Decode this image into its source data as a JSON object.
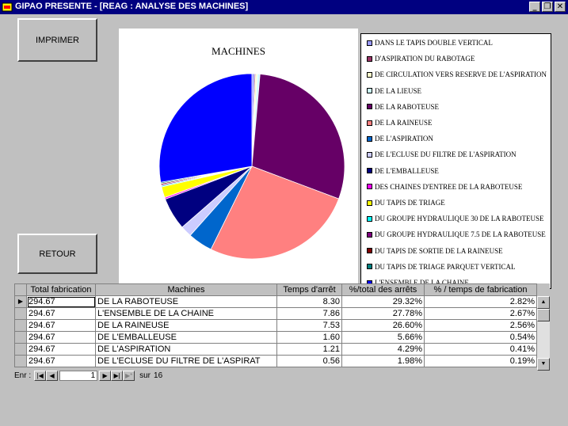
{
  "window": {
    "title": "GIPAO PRESENTE - [REAG : ANALYSE DES MACHINES]",
    "minimize_glyph": "_",
    "restore_glyph": "❐",
    "close_glyph": "✕"
  },
  "buttons": {
    "print_label": "IMPRIMER",
    "back_label": "RETOUR"
  },
  "chart_data": {
    "type": "pie",
    "title": "MACHINES",
    "legend_position": "right",
    "series": [
      {
        "name": "DANS LE TAPIS DOUBLE VERTICAL",
        "value": 0.45,
        "color": "#9999ff"
      },
      {
        "name": "D'ASPIRATION DU RABOTAGE",
        "value": 0.2,
        "color": "#993366"
      },
      {
        "name": "DE CIRCULATION VERS RESERVE DE L'ASPIRATION",
        "value": 0.3,
        "color": "#ffffcc"
      },
      {
        "name": "DE LA LIEUSE",
        "value": 0.45,
        "color": "#ccffff"
      },
      {
        "name": "DE LA RABOTEUSE",
        "value": 29.32,
        "color": "#660066"
      },
      {
        "name": "DE LA RAINEUSE",
        "value": 26.6,
        "color": "#ff8080"
      },
      {
        "name": "DE L'ASPIRATION",
        "value": 4.29,
        "color": "#0066cc"
      },
      {
        "name": "DE L'ECLUSE DU FILTRE DE L'ASPIRATION",
        "value": 1.98,
        "color": "#ccccff"
      },
      {
        "name": "DE L'EMBALLEUSE",
        "value": 5.66,
        "color": "#000080"
      },
      {
        "name": "DES CHAINES D'ENTREE DE LA RABOTEUSE",
        "value": 0.3,
        "color": "#ff00ff"
      },
      {
        "name": "DU  TAPIS DE TRIAGE",
        "value": 1.9,
        "color": "#ffff00"
      },
      {
        "name": "DU GROUPE HYDRAULIQUE 30 DE LA RABOTEUSE",
        "value": 0.2,
        "color": "#00ffff"
      },
      {
        "name": "DU GROUPE HYDRAULIQUE 7.5 DE LA RABOTEUSE",
        "value": 0.2,
        "color": "#800080"
      },
      {
        "name": "DU TAPIS DE SORTIE DE LA RAINEUSE",
        "value": 0.2,
        "color": "#800000"
      },
      {
        "name": "DU TAPIS DE TRIAGE PARQUET VERTICAL",
        "value": 0.2,
        "color": "#008080"
      },
      {
        "name": "L'ENSEMBLE DE LA CHAINE",
        "value": 27.78,
        "color": "#0000ff"
      }
    ]
  },
  "grid": {
    "columns": [
      "Total fabrication",
      "Machines",
      "Temps d'arrêt",
      "%/total des arrêts",
      "% / temps de fabrication"
    ],
    "rows": [
      [
        "294.67",
        "DE LA RABOTEUSE",
        "8.30",
        "29.32%",
        "2.82%"
      ],
      [
        "294.67",
        "L'ENSEMBLE DE LA CHAINE",
        "7.86",
        "27.78%",
        "2.67%"
      ],
      [
        "294.67",
        "DE LA RAINEUSE",
        "7.53",
        "26.60%",
        "2.56%"
      ],
      [
        "294.67",
        "DE L'EMBALLEUSE",
        "1.60",
        "5.66%",
        "0.54%"
      ],
      [
        "294.67",
        "DE L'ASPIRATION",
        "1.21",
        "4.29%",
        "0.41%"
      ],
      [
        "294.67",
        "DE L'ECLUSE DU FILTRE DE L'ASPIRAT",
        "0.56",
        "1.98%",
        "0.19%"
      ]
    ]
  },
  "navigator": {
    "record_label": "Enr :",
    "first": "|◀",
    "prev": "◀",
    "current": "1",
    "next": "▶",
    "last": "▶|",
    "new": "▶*",
    "of_label": "sur",
    "total": "16"
  }
}
